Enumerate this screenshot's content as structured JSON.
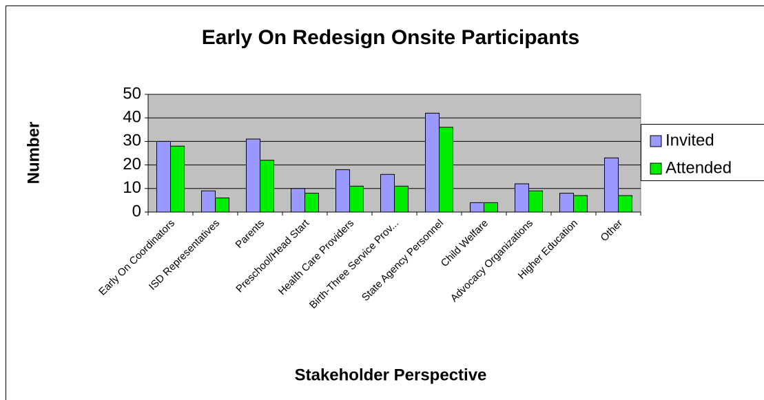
{
  "chart_data": {
    "type": "bar",
    "title": "Early On Redesign Onsite Participants",
    "x_label": "Stakeholder Perspective",
    "y_label": "Number",
    "categories": [
      "Early On Coordinators",
      "ISD Representatives",
      "Parents",
      "Preschool/Head Start",
      "Health Care Providers",
      "Birth-Three Service Prov...",
      "State Agency Personnel",
      "Child Welfare",
      "Advocacy Organizations",
      "Higher Education",
      "Other"
    ],
    "series": [
      {
        "name": "Invited",
        "color": "#9999ff",
        "values": [
          30,
          9,
          31,
          10,
          18,
          16,
          42,
          4,
          12,
          8,
          23
        ]
      },
      {
        "name": "Attended",
        "color": "#00ee00",
        "values": [
          28,
          6,
          22,
          8,
          11,
          11,
          36,
          4,
          9,
          7,
          7
        ]
      }
    ],
    "ylim": [
      0,
      50
    ],
    "yticks": [
      0,
      10,
      20,
      30,
      40,
      50
    ],
    "grid": true,
    "legend": "right"
  }
}
